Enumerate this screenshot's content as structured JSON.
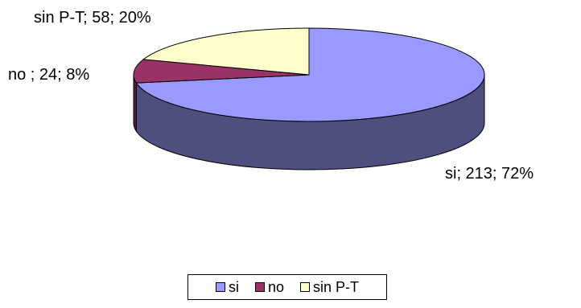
{
  "chart_data": {
    "type": "pie",
    "style": "3d",
    "title": "",
    "slices": [
      {
        "label": "si",
        "value": 213,
        "percent": 72,
        "data_label": "si; 213; 72%",
        "color": "#9999FF",
        "side_color": "#4F4F7F"
      },
      {
        "label": "no",
        "value": 24,
        "percent": 8,
        "data_label": "no ; 24; 8%",
        "color": "#993366",
        "side_color": "#5A1E3C"
      },
      {
        "label": "sin P-T",
        "value": 58,
        "percent": 20,
        "data_label": "sin P-T; 58; 20%",
        "color": "#FFFFCC",
        "side_color": "#BDBD9A"
      }
    ],
    "legend": {
      "position": "bottom",
      "items": [
        "si",
        "no",
        "sin P-T"
      ]
    }
  }
}
